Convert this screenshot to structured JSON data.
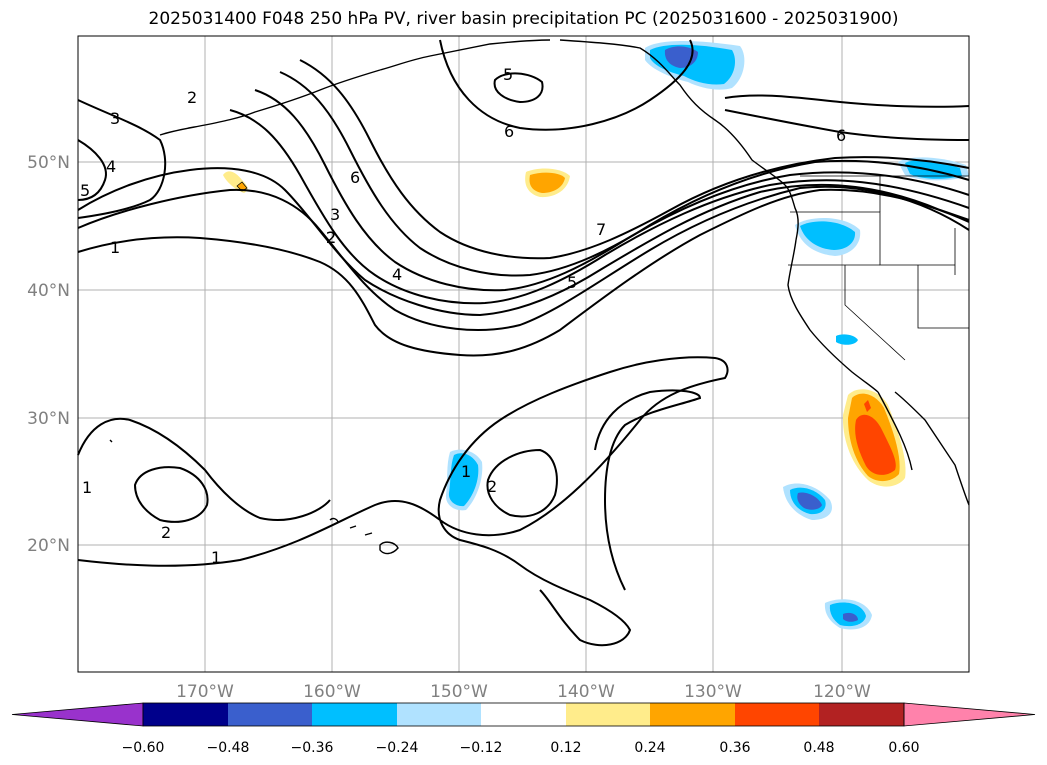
{
  "title": "2025031400 F048 250 hPa PV, river basin precipitation PC (2025031600 - 2025031900)",
  "lat_labels": [
    "50°N",
    "40°N",
    "30°N",
    "20°N"
  ],
  "lon_labels": [
    "170°W",
    "160°W",
    "150°W",
    "140°W",
    "130°W",
    "120°W"
  ],
  "contour_labels": [
    "3",
    "2",
    "4",
    "5",
    "1",
    "2",
    "5",
    "6",
    "6",
    "3",
    "2",
    "4",
    "7",
    "5",
    "6",
    "1",
    "1",
    "2",
    "2",
    "1"
  ],
  "colorbar": {
    "ticks": [
      "−0.60",
      "−0.48",
      "−0.36",
      "−0.24",
      "−0.12",
      "0.12",
      "0.24",
      "0.36",
      "0.48",
      "0.60"
    ],
    "colors": [
      "#9932cc",
      "#00008b",
      "#3a5fcd",
      "#00bfff",
      "#b0e2ff",
      "#ffffff",
      "#ffec8b",
      "#ffa500",
      "#ff4500",
      "#b22222",
      "#ff82ab"
    ]
  }
}
